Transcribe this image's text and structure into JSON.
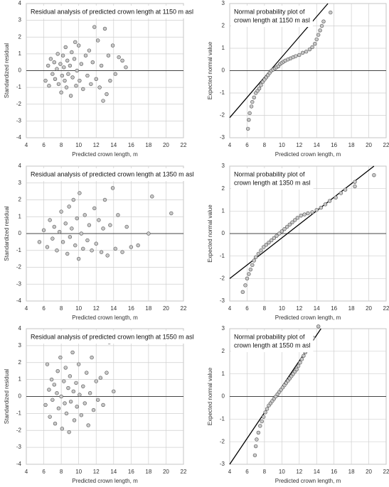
{
  "chart_data": [
    {
      "type": "scatter",
      "title": [
        "Residual analysis of predicted crown length at 1150 m asl"
      ],
      "xlabel": "Predicted crown length, m",
      "ylabel": "Standardized residual",
      "xlim": [
        4,
        22
      ],
      "xticks": [
        4,
        6,
        8,
        10,
        12,
        14,
        16,
        18,
        20,
        22
      ],
      "ylim": [
        -4,
        4
      ],
      "yticks": [
        -4,
        -3,
        -2,
        -1,
        0,
        1,
        2,
        3,
        4
      ],
      "grid": true,
      "color": "#c8c8c8",
      "x": [
        6.2,
        6.5,
        6.6,
        6.8,
        7.0,
        7.2,
        7.3,
        7.5,
        7.6,
        7.7,
        7.9,
        8.0,
        8.1,
        8.2,
        8.3,
        8.4,
        8.5,
        8.6,
        8.7,
        8.8,
        9.0,
        9.1,
        9.2,
        9.3,
        9.5,
        9.6,
        9.7,
        9.8,
        10.0,
        10.1,
        10.3,
        10.5,
        10.8,
        11.0,
        11.2,
        11.4,
        11.6,
        11.8,
        12.0,
        12.2,
        12.4,
        12.6,
        12.8,
        13.0,
        13.2,
        13.4,
        13.6,
        13.9,
        14.2,
        14.6,
        15.0,
        15.4
      ],
      "values": [
        -0.6,
        0.3,
        -0.9,
        0.7,
        -0.2,
        0.5,
        -0.5,
        0.1,
        1.0,
        -0.8,
        0.4,
        -1.3,
        -0.3,
        0.9,
        0.2,
        -0.6,
        1.4,
        -1.0,
        0.6,
        -0.2,
        0.3,
        -1.5,
        1.1,
        -0.4,
        0.7,
        1.7,
        -0.9,
        0.0,
        1.5,
        -0.6,
        0.4,
        -1.1,
        0.9,
        -0.3,
        1.2,
        -0.8,
        0.5,
        2.6,
        -0.5,
        1.8,
        -1.0,
        0.3,
        -1.8,
        2.5,
        -1.4,
        0.9,
        -0.6,
        1.5,
        -0.2,
        0.8,
        0.6,
        0.2
      ]
    },
    {
      "type": "scatter",
      "title": [
        "Normal probability plot of",
        "crown length at 1150 m asl"
      ],
      "xlabel": "Predicted crown length, m",
      "ylabel": "Expected normal value",
      "xlim": [
        4,
        22
      ],
      "xticks": [
        4,
        6,
        8,
        10,
        12,
        14,
        16,
        18,
        20,
        22
      ],
      "ylim": [
        -3,
        3
      ],
      "yticks": [
        -3,
        -2,
        -1,
        0,
        1,
        2,
        3
      ],
      "grid": true,
      "color": "#c8c8c8",
      "x": [
        6.1,
        6.2,
        6.3,
        6.5,
        6.6,
        6.8,
        7.0,
        7.2,
        7.4,
        7.6,
        7.8,
        8.0,
        8.2,
        8.4,
        8.6,
        8.8,
        9.0,
        9.2,
        9.4,
        9.6,
        9.8,
        10.0,
        10.2,
        10.4,
        10.7,
        11.0,
        11.3,
        11.6,
        12.0,
        12.4,
        12.8,
        13.2,
        13.5,
        13.8,
        14.0,
        14.2,
        14.4,
        14.6,
        14.8,
        15.6
      ],
      "values": [
        -2.6,
        -2.2,
        -1.9,
        -1.6,
        -1.4,
        -1.2,
        -1.0,
        -0.9,
        -0.8,
        -0.65,
        -0.5,
        -0.4,
        -0.3,
        -0.2,
        -0.1,
        0.0,
        0.05,
        0.1,
        0.15,
        0.2,
        0.3,
        0.35,
        0.4,
        0.45,
        0.5,
        0.55,
        0.6,
        0.65,
        0.7,
        0.8,
        0.85,
        0.95,
        1.05,
        1.2,
        1.4,
        1.6,
        1.8,
        2.0,
        2.2,
        2.6
      ],
      "reference_line": {
        "x": [
          4,
          15.3
        ],
        "values": [
          -2.1,
          3
        ]
      }
    },
    {
      "type": "scatter",
      "title": [
        "Residual analysis of predicted crown length at 1350 m asl"
      ],
      "xlabel": "Predicted crown length, m",
      "ylabel": "Standardized residual",
      "xlim": [
        4,
        22
      ],
      "xticks": [
        4,
        6,
        8,
        10,
        12,
        14,
        16,
        18,
        20,
        22
      ],
      "ylim": [
        -4,
        4
      ],
      "yticks": [
        -4,
        -3,
        -2,
        -1,
        0,
        1,
        2,
        3,
        4
      ],
      "grid": true,
      "color": "#c8c8c8",
      "x": [
        5.5,
        6.0,
        6.4,
        6.7,
        7.0,
        7.2,
        7.5,
        7.8,
        8.0,
        8.2,
        8.5,
        8.7,
        8.9,
        9.0,
        9.2,
        9.4,
        9.6,
        9.8,
        10.0,
        10.1,
        10.3,
        10.5,
        10.7,
        11.0,
        11.2,
        11.5,
        11.8,
        12.0,
        12.3,
        12.6,
        12.8,
        13.0,
        13.3,
        13.6,
        13.9,
        14.2,
        14.5,
        15.0,
        15.5,
        16.0,
        16.8,
        18.0,
        18.4,
        20.6
      ],
      "values": [
        -0.5,
        0.2,
        -0.8,
        0.8,
        -0.3,
        0.4,
        -1.0,
        0.1,
        1.3,
        -0.5,
        0.6,
        -1.2,
        1.6,
        -0.2,
        0.3,
        2.0,
        -0.7,
        0.9,
        -1.5,
        2.4,
        0.0,
        -0.9,
        1.1,
        -0.4,
        0.5,
        -1.0,
        1.5,
        -0.6,
        0.8,
        -1.1,
        0.3,
        2.0,
        -1.3,
        0.5,
        2.7,
        -0.9,
        1.1,
        -1.1,
        0.4,
        -0.8,
        -0.7,
        0.0,
        2.2,
        1.2
      ]
    },
    {
      "type": "scatter",
      "title": [
        "Normal probability plot of",
        "crown length at 1350 m asl"
      ],
      "xlabel": "Predicted crown length, m",
      "ylabel": "Expected normal value",
      "xlim": [
        4,
        22
      ],
      "xticks": [
        4,
        6,
        8,
        10,
        12,
        14,
        16,
        18,
        20,
        22
      ],
      "ylim": [
        -3,
        3
      ],
      "yticks": [
        -3,
        -2,
        -1,
        0,
        1,
        2,
        3
      ],
      "grid": true,
      "color": "#c8c8c8",
      "x": [
        5.5,
        5.8,
        6.0,
        6.2,
        6.4,
        6.6,
        6.8,
        7.0,
        7.3,
        7.6,
        7.9,
        8.2,
        8.5,
        8.8,
        9.1,
        9.4,
        9.7,
        10.0,
        10.3,
        10.6,
        10.9,
        11.2,
        11.5,
        11.8,
        12.2,
        12.6,
        13.0,
        13.5,
        14.0,
        14.5,
        15.0,
        15.5,
        16.2,
        16.8,
        17.3,
        18.4,
        18.4,
        20.6
      ],
      "values": [
        -2.6,
        -2.3,
        -2.0,
        -1.8,
        -1.6,
        -1.4,
        -1.2,
        -1.05,
        -0.9,
        -0.75,
        -0.6,
        -0.5,
        -0.4,
        -0.3,
        -0.2,
        -0.1,
        0.0,
        0.1,
        0.2,
        0.3,
        0.4,
        0.5,
        0.6,
        0.7,
        0.8,
        0.85,
        0.9,
        0.95,
        1.05,
        1.15,
        1.3,
        1.45,
        1.6,
        1.8,
        1.95,
        2.1,
        2.3,
        2.6
      ],
      "reference_line": {
        "x": [
          4,
          20.6
        ],
        "values": [
          -2.0,
          3
        ]
      }
    },
    {
      "type": "scatter",
      "title": [
        "Residual analysis of predicted crown length at 1550 m asl"
      ],
      "xlabel": "Predicted crown length, m",
      "ylabel": "Standardized residual",
      "xlim": [
        4,
        22
      ],
      "xticks": [
        4,
        6,
        8,
        10,
        12,
        14,
        16,
        18,
        20,
        22
      ],
      "ylim": [
        -4,
        4
      ],
      "yticks": [
        -4,
        -3,
        -2,
        -1,
        0,
        1,
        2,
        3,
        4
      ],
      "grid": true,
      "color": "#c8c8c8",
      "x": [
        6.2,
        6.4,
        6.6,
        6.7,
        6.9,
        7.0,
        7.2,
        7.3,
        7.5,
        7.6,
        7.7,
        7.9,
        8.0,
        8.1,
        8.3,
        8.4,
        8.5,
        8.6,
        8.8,
        8.9,
        9.0,
        9.1,
        9.3,
        9.4,
        9.5,
        9.7,
        9.8,
        10.0,
        10.1,
        10.3,
        10.5,
        10.7,
        10.9,
        11.1,
        11.3,
        11.5,
        11.7,
        12.0,
        12.2,
        12.5,
        12.8,
        13.2,
        13.5,
        14.0
      ],
      "values": [
        -0.5,
        1.9,
        0.4,
        -1.2,
        1.0,
        -0.2,
        0.7,
        -1.6,
        0.2,
        1.5,
        -0.7,
        2.3,
        0.0,
        -1.9,
        0.9,
        -0.4,
        1.7,
        -1.0,
        0.5,
        -2.1,
        1.2,
        -0.3,
        2.6,
        0.3,
        -1.4,
        0.8,
        -0.6,
        1.9,
        0.1,
        -1.1,
        0.6,
        -0.4,
        1.4,
        -1.7,
        0.2,
        2.3,
        -0.8,
        0.9,
        -0.2,
        1.1,
        -0.5,
        1.4,
        3.2,
        0.3
      ]
    },
    {
      "type": "scatter",
      "title": [
        "Normal probability plot of",
        "crown length at 1550 m asl"
      ],
      "xlabel": "Predicted crown length, m",
      "ylabel": "Expected normal value",
      "xlim": [
        4,
        22
      ],
      "xticks": [
        4,
        6,
        8,
        10,
        12,
        14,
        16,
        18,
        20,
        22
      ],
      "ylim": [
        -3,
        3
      ],
      "yticks": [
        -3,
        -2,
        -1,
        0,
        1,
        2,
        3
      ],
      "grid": true,
      "color": "#c8c8c8",
      "x": [
        6.9,
        7.0,
        7.1,
        7.3,
        7.5,
        7.7,
        7.9,
        8.1,
        8.3,
        8.5,
        8.7,
        8.9,
        9.1,
        9.3,
        9.5,
        9.7,
        9.9,
        10.1,
        10.3,
        10.5,
        10.7,
        10.9,
        11.1,
        11.3,
        11.5,
        11.7,
        11.9,
        12.1,
        12.3,
        12.5,
        12.7,
        12.9,
        13.1,
        13.3,
        13.6,
        14.2
      ],
      "values": [
        -2.6,
        -2.2,
        -1.9,
        -1.6,
        -1.3,
        -1.1,
        -0.9,
        -0.7,
        -0.55,
        -0.4,
        -0.3,
        -0.2,
        -0.1,
        0.0,
        0.1,
        0.2,
        0.3,
        0.4,
        0.5,
        0.6,
        0.7,
        0.8,
        0.9,
        1.0,
        1.1,
        1.2,
        1.35,
        1.5,
        1.65,
        1.8,
        1.95,
        2.1,
        2.25,
        2.4,
        2.6,
        3.1
      ],
      "reference_line": {
        "x": [
          4,
          14.5
        ],
        "values": [
          -3,
          3
        ]
      }
    }
  ]
}
